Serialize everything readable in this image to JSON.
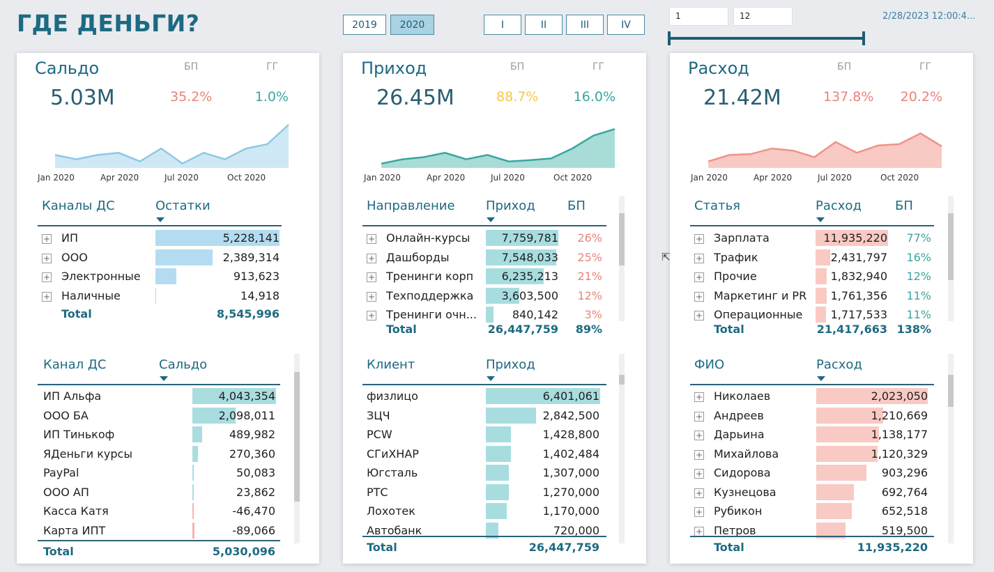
{
  "header": {
    "title": "ГДЕ ДЕНЬГИ?",
    "years": [
      "2019",
      "2020"
    ],
    "active_year": "2020",
    "quarters": [
      "I",
      "II",
      "III",
      "IV"
    ],
    "range_from": "1",
    "range_to": "12",
    "timestamp": "2/28/2023 12:00:4...",
    "range_fill": 1.0
  },
  "months": [
    "Jan 2020",
    "Apr 2020",
    "Jul 2020",
    "Oct 2020"
  ],
  "cards": {
    "saldo": {
      "title": "Сальдо",
      "bp_label": "БП",
      "gg_label": "ГГ",
      "value": "5.03M",
      "bp": "35.2%",
      "gg": "1.0%",
      "colors": {
        "bp": "#e8837a",
        "gg": "#3aa5a0",
        "line": "#8ec8e3",
        "fill": "#cfe8f5"
      },
      "spark_values": [
        0.3,
        0.2,
        0.3,
        0.35,
        0.15,
        0.45,
        0.1,
        0.35,
        0.2,
        0.45,
        0.55,
        1.0
      ],
      "top_table": {
        "col1": "Каналы ДС",
        "col2": "Остатки",
        "rows": [
          {
            "label": "ИП",
            "value": "5,228,141",
            "share": 1.0
          },
          {
            "label": "ООО",
            "value": "2,389,314",
            "share": 0.46
          },
          {
            "label": "Электронные",
            "value": "913,623",
            "share": 0.17
          },
          {
            "label": "Наличные",
            "value": "14,918",
            "share": 0.003
          }
        ],
        "total_label": "Total",
        "total_value": "8,545,996"
      },
      "bottom_table": {
        "col1": "Канал ДС",
        "col2": "Сальдо",
        "rows": [
          {
            "label": "ИП Альфа",
            "value": "4,043,354",
            "share": 1.0
          },
          {
            "label": "ООО БА",
            "value": "2,098,011",
            "share": 0.52
          },
          {
            "label": "ИП Тинькоф",
            "value": "489,982",
            "share": 0.12
          },
          {
            "label": "ЯДеньги курсы",
            "value": "270,360",
            "share": 0.07
          },
          {
            "label": "PayPal",
            "value": "50,083",
            "share": 0.012
          },
          {
            "label": "ООО АП",
            "value": "23,862",
            "share": 0.006
          },
          {
            "label": "Касса Катя",
            "value": "-46,470",
            "share": -0.011
          },
          {
            "label": "Карта ИПТ",
            "value": "-89,066",
            "share": -0.022
          }
        ],
        "total_label": "Total",
        "total_value": "5,030,096"
      }
    },
    "income": {
      "title": "Приход",
      "bp_label": "БП",
      "gg_label": "ГГ",
      "value": "26.45M",
      "bp": "88.7%",
      "gg": "16.0%",
      "colors": {
        "bp": "#f2c94c",
        "gg": "#3aa5a0",
        "line": "#3aa5a0",
        "fill": "#a8dcd6"
      },
      "spark_values": [
        0.1,
        0.2,
        0.25,
        0.35,
        0.2,
        0.3,
        0.15,
        0.18,
        0.22,
        0.45,
        0.75,
        0.9
      ],
      "top_table": {
        "col1": "Направление",
        "col2": "Приход",
        "col3": "БП",
        "rows": [
          {
            "label": "Онлайн-курсы",
            "value": "7,759,781",
            "pct": "26%",
            "share": 1.0
          },
          {
            "label": "Дашборды",
            "value": "7,548,033",
            "pct": "25%",
            "share": 0.97
          },
          {
            "label": "Тренинги корп",
            "value": "6,235,213",
            "pct": "21%",
            "share": 0.8
          },
          {
            "label": "Техподдержка",
            "value": "3,603,500",
            "pct": "12%",
            "share": 0.46
          },
          {
            "label": "Тренинги очн...",
            "value": "840,142",
            "pct": "3%",
            "share": 0.11
          }
        ],
        "total_label": "Total",
        "total_value": "26,447,759",
        "total_pct": "89%"
      },
      "bottom_table": {
        "col1": "Клиент",
        "col2": "Приход",
        "rows": [
          {
            "label": "физлицо",
            "value": "6,401,061",
            "share": 1.0
          },
          {
            "label": "ЗЦЧ",
            "value": "2,842,500",
            "share": 0.44
          },
          {
            "label": "PCW",
            "value": "1,428,800",
            "share": 0.22
          },
          {
            "label": "СГиХНАР",
            "value": "1,402,484",
            "share": 0.22
          },
          {
            "label": "Югсталь",
            "value": "1,307,000",
            "share": 0.2
          },
          {
            "label": "РТС",
            "value": "1,270,000",
            "share": 0.2
          },
          {
            "label": "Лохотек",
            "value": "1,170,000",
            "share": 0.18
          },
          {
            "label": "Автобанк",
            "value": "720,000",
            "share": 0.11
          }
        ],
        "total_label": "Total",
        "total_value": "26,447,759"
      }
    },
    "expense": {
      "title": "Расход",
      "bp_label": "БП",
      "gg_label": "ГГ",
      "value": "21.42M",
      "bp": "137.8%",
      "gg": "20.2%",
      "colors": {
        "bp": "#e8837a",
        "gg": "#e8837a",
        "line": "#f0928a",
        "fill": "#f9c9c3"
      },
      "spark_values": [
        0.15,
        0.3,
        0.32,
        0.45,
        0.4,
        0.25,
        0.6,
        0.35,
        0.52,
        0.55,
        0.8,
        0.5
      ],
      "top_table": {
        "col1": "Статья",
        "col2": "Расход",
        "col3": "БП",
        "rows": [
          {
            "label": "Зарплата",
            "value": "11,935,220",
            "pct": "77%",
            "share": 1.0
          },
          {
            "label": "Трафик",
            "value": "2,431,797",
            "pct": "16%",
            "share": 0.2
          },
          {
            "label": "Прочие",
            "value": "1,832,940",
            "pct": "12%",
            "share": 0.15
          },
          {
            "label": "Маркетинг и PR",
            "value": "1,761,356",
            "pct": "11%",
            "share": 0.15
          },
          {
            "label": "Операционные",
            "value": "1,717,533",
            "pct": "11%",
            "share": 0.14
          }
        ],
        "total_label": "Total",
        "total_value": "21,417,663",
        "total_pct": "138%"
      },
      "bottom_table": {
        "col1": "ФИО",
        "col2": "Расход",
        "rows": [
          {
            "label": "Николаев",
            "value": "2,023,050",
            "share": 1.0
          },
          {
            "label": "Андреев",
            "value": "1,210,669",
            "share": 0.6
          },
          {
            "label": "Дарьина",
            "value": "1,138,177",
            "share": 0.56
          },
          {
            "label": "Михайлова",
            "value": "1,120,329",
            "share": 0.55
          },
          {
            "label": "Сидорова",
            "value": "903,296",
            "share": 0.45
          },
          {
            "label": "Кузнецова",
            "value": "692,764",
            "share": 0.34
          },
          {
            "label": "Рубикон",
            "value": "652,518",
            "share": 0.32
          },
          {
            "label": "Петров",
            "value": "519,500",
            "share": 0.26
          }
        ],
        "total_label": "Total",
        "total_value": "11,935,220"
      }
    }
  }
}
